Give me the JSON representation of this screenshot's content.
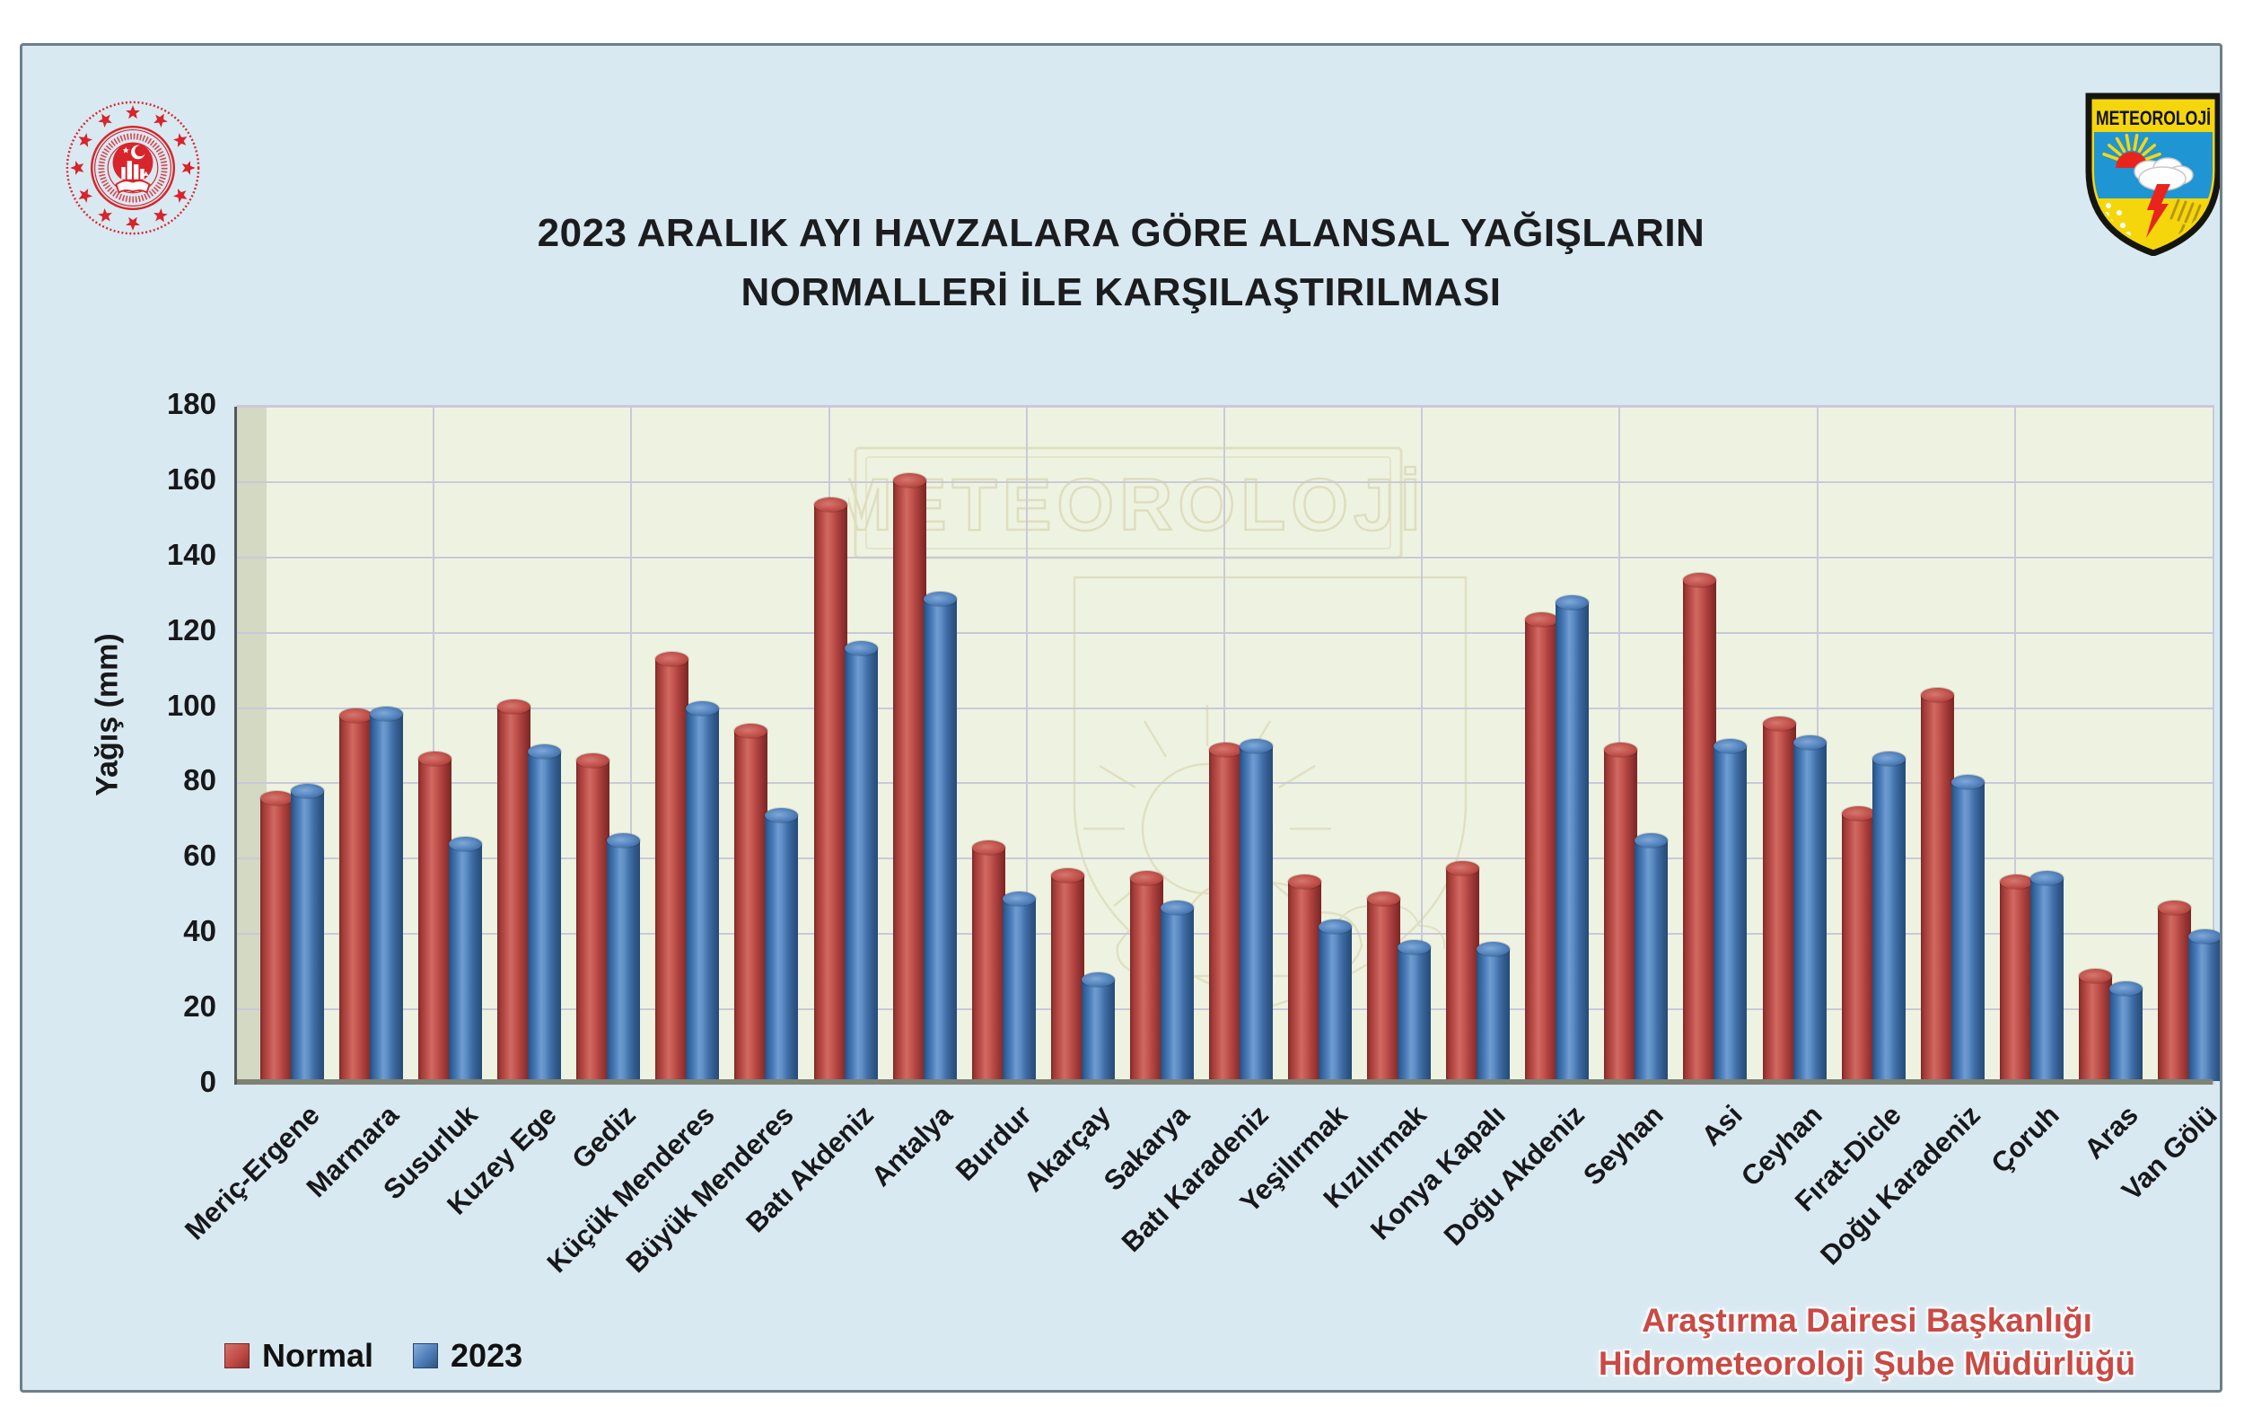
{
  "window": {
    "background": "#ffffff",
    "panel_background": "#d9e9f2",
    "panel_border": "#6e7f8a",
    "plot_background": "#eef3e1"
  },
  "header": {
    "title_line1": "2023 ARALIK AYI HAVZALARA GÖRE ALANSAL YAĞIŞLARIN",
    "title_line2": "NORMALLERİ İLE KARŞILAŞTIRILMASI"
  },
  "logos": {
    "ministry_seal": "turkish-ministry-red-seal",
    "badge_label": "METEOROLOJİ"
  },
  "watermark": {
    "text": "METEOROLOJİ"
  },
  "chart_data": {
    "type": "bar",
    "title": "2023 ARALIK AYI HAVZALARA GÖRE ALANSAL YAĞIŞLARIN NORMALLERİ İLE KARŞILAŞTIRILMASI",
    "xlabel": "",
    "ylabel": "Yağış (mm)",
    "ylim": [
      0,
      180
    ],
    "ytick_step": 20,
    "yticks": [
      0,
      20,
      40,
      60,
      80,
      100,
      120,
      140,
      160,
      180
    ],
    "grid": true,
    "legend_position": "bottom-left",
    "categories": [
      "Meriç-Ergene",
      "Marmara",
      "Susurluk",
      "Kuzey Ege",
      "Gediz",
      "Küçük Menderes",
      "Büyük Menderes",
      "Batı Akdeniz",
      "Antalya",
      "Burdur",
      "Akarçay",
      "Sakarya",
      "Batı Karadeniz",
      "Yeşilırmak",
      "Kızılırmak",
      "Konya Kapalı",
      "Doğu Akdeniz",
      "Seyhan",
      "Asi",
      "Ceyhan",
      "Fırat-Dicle",
      "Doğu Karadeniz",
      "Çoruh",
      "Aras",
      "Van Gölü"
    ],
    "series": [
      {
        "name": "Normal",
        "color": "#b2423f",
        "values": [
          75,
          97,
          85.5,
          99.5,
          85,
          112,
          93,
          153,
          159.5,
          62,
          54.5,
          54,
          88,
          53,
          48.5,
          56.5,
          122.5,
          88,
          133,
          95,
          71,
          102.5,
          53,
          28,
          46
        ]
      },
      {
        "name": "2023",
        "color": "#4e7fbd",
        "values": [
          77,
          97.5,
          63,
          87.5,
          64,
          99,
          70.5,
          115,
          128,
          48.5,
          27,
          46,
          89,
          41,
          35.5,
          35,
          127,
          64,
          89,
          90,
          85.5,
          79.5,
          54,
          24.5,
          38.5
        ]
      }
    ]
  },
  "legend": {
    "items": [
      {
        "label": "Normal",
        "color": "#b2423f"
      },
      {
        "label": "2023",
        "color": "#4e7fbd"
      }
    ]
  },
  "footer": {
    "credit_line1": "Araştırma Dairesi Başkanlığı",
    "credit_line2": "Hidrometeoroloji Şube Müdürlüğü",
    "credit_color": "#c94a45"
  }
}
